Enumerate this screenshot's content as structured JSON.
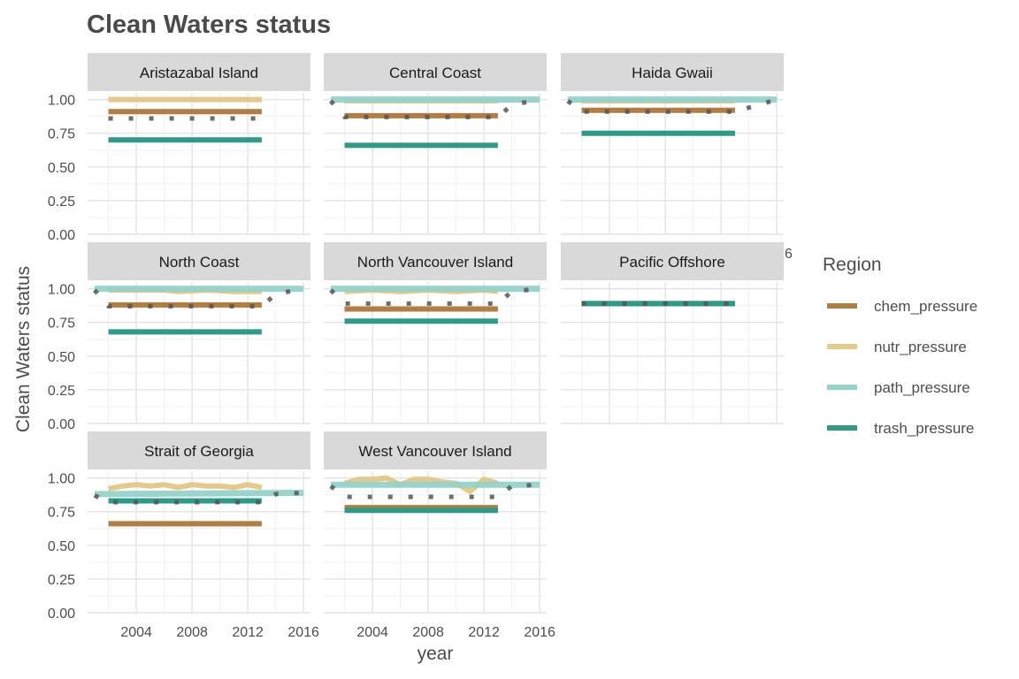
{
  "chart_data": {
    "type": "line",
    "title": "Clean Waters status",
    "xlabel": "year",
    "ylabel": "Clean Waters status",
    "xlim": [
      2000.5,
      2016.5
    ],
    "ylim": [
      0,
      1.05
    ],
    "x_ticks": [
      "2004",
      "2008",
      "2012",
      "2016"
    ],
    "y_ticks": [
      "0.00",
      "0.25",
      "0.50",
      "0.75",
      "1.00"
    ],
    "grid": true,
    "legend": {
      "title": "Region",
      "position": "right",
      "entries": [
        {
          "name": "chem_pressure",
          "color": "#b07d42"
        },
        {
          "name": "nutr_pressure",
          "color": "#e6c98a"
        },
        {
          "name": "path_pressure",
          "color": "#93d3c9"
        },
        {
          "name": "trash_pressure",
          "color": "#2e9a88"
        }
      ]
    },
    "overall_score_style": {
      "color": "#555555",
      "line": "dotted"
    },
    "panels": [
      {
        "name": "Aristazabal Island",
        "series": [
          {
            "name": "nutr_pressure",
            "x": [
              2002,
              2013
            ],
            "y": [
              1.0,
              1.0
            ]
          },
          {
            "name": "chem_pressure",
            "x": [
              2002,
              2013
            ],
            "y": [
              0.91,
              0.91
            ]
          },
          {
            "name": "trash_pressure",
            "x": [
              2002,
              2013
            ],
            "y": [
              0.7,
              0.7
            ]
          }
        ],
        "overall": {
          "x": [
            2002,
            2013
          ],
          "y": [
            0.86,
            0.86
          ]
        }
      },
      {
        "name": "Central Coast",
        "series": [
          {
            "name": "nutr_pressure",
            "x": [
              2002,
              2013
            ],
            "y": [
              0.99,
              0.99
            ]
          },
          {
            "name": "path_pressure",
            "x": [
              2001,
              2016
            ],
            "y": [
              1.0,
              1.0
            ]
          },
          {
            "name": "chem_pressure",
            "x": [
              2002,
              2013
            ],
            "y": [
              0.88,
              0.88
            ]
          },
          {
            "name": "trash_pressure",
            "x": [
              2002,
              2013
            ],
            "y": [
              0.66,
              0.66
            ]
          }
        ],
        "overall": {
          "x": [
            2001,
            2002,
            2013,
            2014,
            2016
          ],
          "y": [
            0.99,
            0.87,
            0.87,
            0.96,
            1.0
          ]
        }
      },
      {
        "name": "Haida Gwaii",
        "series": [
          {
            "name": "nutr_pressure",
            "x": [
              2002,
              2013
            ],
            "y": [
              0.99,
              0.99
            ]
          },
          {
            "name": "path_pressure",
            "x": [
              2001,
              2016
            ],
            "y": [
              1.0,
              1.0
            ]
          },
          {
            "name": "chem_pressure",
            "x": [
              2002,
              2013
            ],
            "y": [
              0.92,
              0.92
            ]
          },
          {
            "name": "trash_pressure",
            "x": [
              2002,
              2013
            ],
            "y": [
              0.75,
              0.75
            ]
          }
        ],
        "overall": {
          "x": [
            2001,
            2002,
            2013,
            2016
          ],
          "y": [
            0.99,
            0.91,
            0.91,
            1.0
          ]
        }
      },
      {
        "name": "North Coast",
        "series": [
          {
            "name": "nutr_pressure",
            "x": [
              2002,
              2004,
              2006,
              2007,
              2009,
              2011,
              2013
            ],
            "y": [
              0.99,
              0.99,
              0.99,
              0.98,
              0.99,
              0.98,
              0.98
            ]
          },
          {
            "name": "path_pressure",
            "x": [
              2001,
              2016
            ],
            "y": [
              1.0,
              1.0
            ]
          },
          {
            "name": "chem_pressure",
            "x": [
              2002,
              2013
            ],
            "y": [
              0.88,
              0.88
            ]
          },
          {
            "name": "trash_pressure",
            "x": [
              2002,
              2013
            ],
            "y": [
              0.68,
              0.68
            ]
          }
        ],
        "overall": {
          "x": [
            2001,
            2002,
            2013,
            2014,
            2016
          ],
          "y": [
            0.99,
            0.87,
            0.87,
            0.96,
            1.0
          ]
        }
      },
      {
        "name": "North Vancouver Island",
        "series": [
          {
            "name": "nutr_pressure",
            "x": [
              2002,
              2004,
              2006,
              2008,
              2010,
              2012,
              2013
            ],
            "y": [
              0.98,
              0.99,
              0.98,
              0.99,
              0.98,
              0.99,
              0.98
            ]
          },
          {
            "name": "path_pressure",
            "x": [
              2001,
              2016
            ],
            "y": [
              1.0,
              1.0
            ]
          },
          {
            "name": "chem_pressure",
            "x": [
              2002,
              2013
            ],
            "y": [
              0.85,
              0.85
            ]
          },
          {
            "name": "trash_pressure",
            "x": [
              2002,
              2013
            ],
            "y": [
              0.76,
              0.76
            ]
          }
        ],
        "overall": {
          "x": [
            2001,
            2002,
            2013,
            2014,
            2016
          ],
          "y": [
            0.99,
            0.89,
            0.89,
            0.98,
            1.0
          ]
        }
      },
      {
        "name": "Pacific Offshore",
        "series": [
          {
            "name": "chem_pressure",
            "x": [
              2002,
              2013
            ],
            "y": [
              0.89,
              0.89
            ]
          },
          {
            "name": "trash_pressure",
            "x": [
              2002,
              2013
            ],
            "y": [
              0.89,
              0.89
            ]
          }
        ],
        "overall": {
          "x": [
            2002,
            2013
          ],
          "y": [
            0.89,
            0.89
          ]
        }
      },
      {
        "name": "Strait of Georgia",
        "series": [
          {
            "name": "nutr_pressure",
            "x": [
              2002,
              2003,
              2004,
              2005,
              2006,
              2007,
              2008,
              2009,
              2010,
              2011,
              2012,
              2013
            ],
            "y": [
              0.92,
              0.94,
              0.95,
              0.94,
              0.95,
              0.93,
              0.95,
              0.94,
              0.94,
              0.93,
              0.95,
              0.93
            ]
          },
          {
            "name": "path_pressure",
            "x": [
              2001,
              2016
            ],
            "y": [
              0.88,
              0.89
            ]
          },
          {
            "name": "chem_pressure",
            "x": [
              2002,
              2013
            ],
            "y": [
              0.66,
              0.66
            ]
          },
          {
            "name": "trash_pressure",
            "x": [
              2002,
              2013
            ],
            "y": [
              0.83,
              0.83
            ]
          }
        ],
        "overall": {
          "x": [
            2001,
            2002,
            2013,
            2014,
            2016
          ],
          "y": [
            0.87,
            0.82,
            0.82,
            0.88,
            0.89
          ]
        }
      },
      {
        "name": "West Vancouver Island",
        "series": [
          {
            "name": "nutr_pressure",
            "x": [
              2002,
              2003,
              2004,
              2005,
              2006,
              2007,
              2008,
              2009,
              2010,
              2011,
              2012,
              2013
            ],
            "y": [
              0.96,
              0.99,
              0.99,
              1.0,
              0.95,
              0.99,
              0.99,
              0.97,
              0.96,
              0.9,
              0.99,
              0.96
            ]
          },
          {
            "name": "path_pressure",
            "x": [
              2001,
              2016
            ],
            "y": [
              0.95,
              0.95
            ]
          },
          {
            "name": "chem_pressure",
            "x": [
              2002,
              2013
            ],
            "y": [
              0.78,
              0.78
            ]
          },
          {
            "name": "trash_pressure",
            "x": [
              2002,
              2013
            ],
            "y": [
              0.76,
              0.76
            ]
          }
        ],
        "overall": {
          "x": [
            2001,
            2002,
            2013,
            2014,
            2016
          ],
          "y": [
            0.94,
            0.86,
            0.86,
            0.94,
            0.95
          ]
        }
      }
    ]
  }
}
